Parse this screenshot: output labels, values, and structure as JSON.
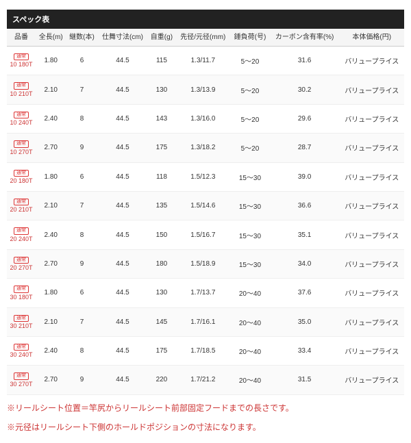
{
  "title": "スペック表",
  "headers": [
    "品番",
    "全長(m)",
    "継数(本)",
    "仕舞寸法(cm)",
    "自重(g)",
    "先径/元径(mm)",
    "錘負荷(号)",
    "カーボン含有率(%)",
    "本体価格(円)"
  ],
  "badge": "通常",
  "rows": [
    {
      "model": "10 180T",
      "len": "1.80",
      "pcs": "6",
      "close": "44.5",
      "wt": "115",
      "dia": "1.3/11.7",
      "load": "5～20",
      "carbon": "31.6",
      "price": "バリュープライス"
    },
    {
      "model": "10 210T",
      "len": "2.10",
      "pcs": "7",
      "close": "44.5",
      "wt": "130",
      "dia": "1.3/13.9",
      "load": "5～20",
      "carbon": "30.2",
      "price": "バリュープライス"
    },
    {
      "model": "10 240T",
      "len": "2.40",
      "pcs": "8",
      "close": "44.5",
      "wt": "143",
      "dia": "1.3/16.0",
      "load": "5～20",
      "carbon": "29.6",
      "price": "バリュープライス"
    },
    {
      "model": "10 270T",
      "len": "2.70",
      "pcs": "9",
      "close": "44.5",
      "wt": "175",
      "dia": "1.3/18.2",
      "load": "5～20",
      "carbon": "28.7",
      "price": "バリュープライス"
    },
    {
      "model": "20 180T",
      "len": "1.80",
      "pcs": "6",
      "close": "44.5",
      "wt": "118",
      "dia": "1.5/12.3",
      "load": "15～30",
      "carbon": "39.0",
      "price": "バリュープライス"
    },
    {
      "model": "20 210T",
      "len": "2.10",
      "pcs": "7",
      "close": "44.5",
      "wt": "135",
      "dia": "1.5/14.6",
      "load": "15～30",
      "carbon": "36.6",
      "price": "バリュープライス"
    },
    {
      "model": "20 240T",
      "len": "2.40",
      "pcs": "8",
      "close": "44.5",
      "wt": "150",
      "dia": "1.5/16.7",
      "load": "15～30",
      "carbon": "35.1",
      "price": "バリュープライス"
    },
    {
      "model": "20 270T",
      "len": "2.70",
      "pcs": "9",
      "close": "44.5",
      "wt": "180",
      "dia": "1.5/18.9",
      "load": "15～30",
      "carbon": "34.0",
      "price": "バリュープライス"
    },
    {
      "model": "30 180T",
      "len": "1.80",
      "pcs": "6",
      "close": "44.5",
      "wt": "130",
      "dia": "1.7/13.7",
      "load": "20～40",
      "carbon": "37.6",
      "price": "バリュープライス"
    },
    {
      "model": "30 210T",
      "len": "2.10",
      "pcs": "7",
      "close": "44.5",
      "wt": "145",
      "dia": "1.7/16.1",
      "load": "20～40",
      "carbon": "35.0",
      "price": "バリュープライス"
    },
    {
      "model": "30 240T",
      "len": "2.40",
      "pcs": "8",
      "close": "44.5",
      "wt": "175",
      "dia": "1.7/18.5",
      "load": "20～40",
      "carbon": "33.4",
      "price": "バリュープライス"
    },
    {
      "model": "30 270T",
      "len": "2.70",
      "pcs": "9",
      "close": "44.5",
      "wt": "220",
      "dia": "1.7/21.2",
      "load": "20～40",
      "carbon": "31.5",
      "price": "バリュープライス"
    }
  ],
  "notes": [
    "※リールシート位置＝竿尻からリールシート前部固定フードまでの長さです。",
    "※元径はリールシート下側のホールドポジションの寸法になります。"
  ]
}
